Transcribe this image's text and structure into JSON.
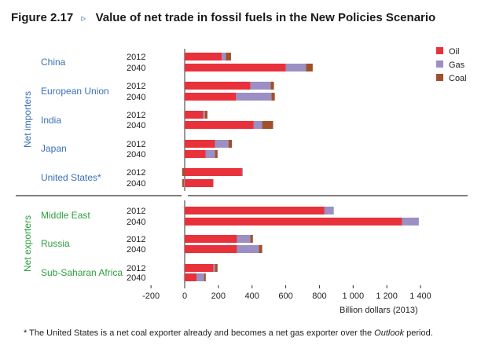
{
  "figure": {
    "number": "Figure 2.17",
    "arrow": "▹",
    "title": "Value of net trade in fossil fuels in the New Policies Scenario"
  },
  "footnote": {
    "before": "* The United States is a net coal exporter already and becomes a net gas exporter over the ",
    "italic": "Outlook",
    "after": " period."
  },
  "colors": {
    "Oil": "#e8313a",
    "Gas": "#9b8fc4",
    "Coal": "#a0502a",
    "importers_label": "#3a6fb5",
    "exporters_label": "#2e9e3e"
  },
  "chart_data": {
    "type": "bar",
    "orientation": "horizontal",
    "stacked": true,
    "xlabel": "Billion dollars (2013)",
    "xlim": [
      -200,
      1400
    ],
    "xticks": [
      -200,
      0,
      200,
      400,
      600,
      800,
      1000,
      1200,
      1400
    ],
    "xtick_labels": [
      "-200",
      "0",
      "200",
      "400",
      "600",
      "800",
      "1 000",
      "1 200",
      "1 400"
    ],
    "legend": {
      "placement": "top-right",
      "entries": [
        "Oil",
        "Gas",
        "Coal"
      ]
    },
    "groups": [
      {
        "name": "Net importers",
        "regions": [
          "China",
          "European Union",
          "India",
          "Japan",
          "United States*"
        ]
      },
      {
        "name": "Net exporters",
        "regions": [
          "Middle East",
          "Russia",
          "Sub-Saharan Africa"
        ]
      }
    ],
    "regions": [
      {
        "name": "China",
        "group": "Net importers",
        "years": [
          {
            "year": "2012",
            "Oil": 220,
            "Gas": 25,
            "Coal": 30
          },
          {
            "year": "2040",
            "Oil": 600,
            "Gas": 120,
            "Coal": 40
          }
        ]
      },
      {
        "name": "European Union",
        "group": "Net importers",
        "years": [
          {
            "year": "2012",
            "Oil": 390,
            "Gas": 120,
            "Coal": 20
          },
          {
            "year": "2040",
            "Oil": 305,
            "Gas": 210,
            "Coal": 20
          }
        ]
      },
      {
        "name": "India",
        "group": "Net importers",
        "years": [
          {
            "year": "2012",
            "Oil": 110,
            "Gas": 10,
            "Coal": 15
          },
          {
            "year": "2040",
            "Oil": 410,
            "Gas": 50,
            "Coal": 65
          }
        ]
      },
      {
        "name": "Japan",
        "group": "Net importers",
        "years": [
          {
            "year": "2012",
            "Oil": 180,
            "Gas": 80,
            "Coal": 20
          },
          {
            "year": "2040",
            "Oil": 125,
            "Gas": 55,
            "Coal": 15
          }
        ]
      },
      {
        "name": "United States*",
        "group": "Net importers",
        "years": [
          {
            "year": "2012",
            "Oil": 340,
            "Gas": 5,
            "Coal": -15
          },
          {
            "year": "2040",
            "Oil": 170,
            "Gas": -5,
            "Coal": -10
          }
        ]
      },
      {
        "name": "Middle East",
        "group": "Net exporters",
        "years": [
          {
            "year": "2012",
            "Oil": 830,
            "Gas": 55,
            "Coal": 0
          },
          {
            "year": "2040",
            "Oil": 1290,
            "Gas": 100,
            "Coal": 0
          }
        ]
      },
      {
        "name": "Russia",
        "group": "Net exporters",
        "years": [
          {
            "year": "2012",
            "Oil": 310,
            "Gas": 80,
            "Coal": 15
          },
          {
            "year": "2040",
            "Oil": 310,
            "Gas": 130,
            "Coal": 20
          }
        ]
      },
      {
        "name": "Sub-Saharan Africa",
        "group": "Net exporters",
        "years": [
          {
            "year": "2012",
            "Oil": 170,
            "Gas": 10,
            "Coal": 15
          },
          {
            "year": "2040",
            "Oil": 70,
            "Gas": 45,
            "Coal": 10
          }
        ]
      }
    ]
  }
}
